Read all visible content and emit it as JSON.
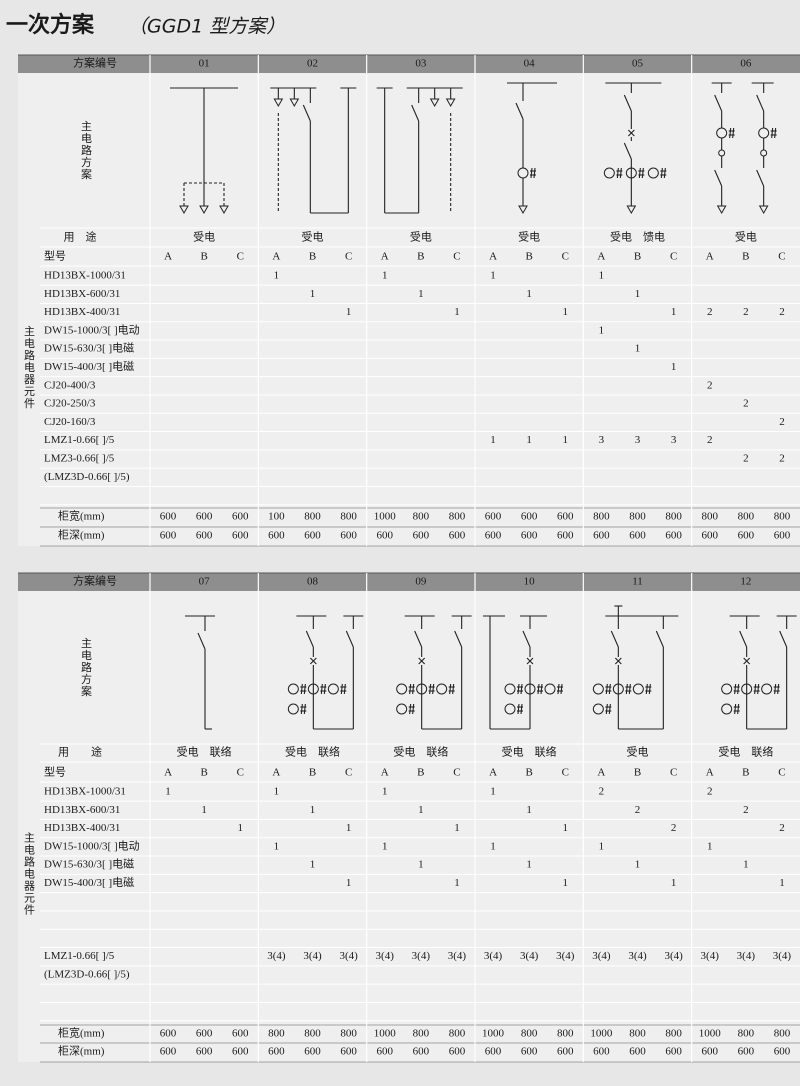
{
  "title": "一次方案",
  "subtitle": "（GGD1 型方案）",
  "tables": [
    {
      "header_label": "方案编号",
      "diagram_label": "主电路方案",
      "usage_label": "用　途",
      "component_label": "主电路电器元件",
      "type_label": "型号",
      "sub_columns": [
        "A",
        "B",
        "C"
      ],
      "schemes": [
        {
          "code": "01",
          "usage": "受电"
        },
        {
          "code": "02",
          "usage": "受电"
        },
        {
          "code": "03",
          "usage": "受电"
        },
        {
          "code": "04",
          "usage": "受电"
        },
        {
          "code": "05",
          "usage": "受电　馈电"
        },
        {
          "code": "06",
          "usage": "受电"
        }
      ],
      "rows": [
        {
          "name": "HD13BX-1000/31",
          "cells": [
            null,
            null,
            null,
            1,
            null,
            null,
            1,
            null,
            null,
            1,
            null,
            null,
            1,
            null,
            null,
            null,
            null,
            null
          ]
        },
        {
          "name": "HD13BX-600/31",
          "cells": [
            null,
            null,
            null,
            null,
            1,
            null,
            null,
            1,
            null,
            null,
            1,
            null,
            null,
            1,
            null,
            null,
            null,
            null
          ]
        },
        {
          "name": "HD13BX-400/31",
          "cells": [
            null,
            null,
            null,
            null,
            null,
            1,
            null,
            null,
            1,
            null,
            null,
            1,
            null,
            null,
            1,
            2,
            2,
            2
          ]
        },
        {
          "name": "DW15-1000/3[ ]电动",
          "cells": [
            null,
            null,
            null,
            null,
            null,
            null,
            null,
            null,
            null,
            null,
            null,
            null,
            1,
            null,
            null,
            null,
            null,
            null
          ]
        },
        {
          "name": "DW15-630/3[ ]电磁",
          "cells": [
            null,
            null,
            null,
            null,
            null,
            null,
            null,
            null,
            null,
            null,
            null,
            null,
            null,
            1,
            null,
            null,
            null,
            null
          ]
        },
        {
          "name": "DW15-400/3[ ]电磁",
          "cells": [
            null,
            null,
            null,
            null,
            null,
            null,
            null,
            null,
            null,
            null,
            null,
            null,
            null,
            null,
            1,
            null,
            null,
            null
          ]
        },
        {
          "name": "CJ20-400/3",
          "cells": [
            null,
            null,
            null,
            null,
            null,
            null,
            null,
            null,
            null,
            null,
            null,
            null,
            null,
            null,
            null,
            2,
            null,
            null
          ]
        },
        {
          "name": "CJ20-250/3",
          "cells": [
            null,
            null,
            null,
            null,
            null,
            null,
            null,
            null,
            null,
            null,
            null,
            null,
            null,
            null,
            null,
            null,
            2,
            null
          ]
        },
        {
          "name": "CJ20-160/3",
          "cells": [
            null,
            null,
            null,
            null,
            null,
            null,
            null,
            null,
            null,
            null,
            null,
            null,
            null,
            null,
            null,
            null,
            null,
            2
          ]
        },
        {
          "name": "LMZ1-0.66[ ]/5",
          "cells": [
            null,
            null,
            null,
            null,
            null,
            null,
            null,
            null,
            null,
            1,
            1,
            1,
            3,
            3,
            3,
            2,
            null,
            null
          ]
        },
        {
          "name": "LMZ3-0.66[ ]/5",
          "cells": [
            null,
            null,
            null,
            null,
            null,
            null,
            null,
            null,
            null,
            null,
            null,
            null,
            null,
            null,
            null,
            null,
            2,
            2
          ]
        },
        {
          "name": "(LMZ3D-0.66[ ]/5)",
          "cells": [
            null,
            null,
            null,
            null,
            null,
            null,
            null,
            null,
            null,
            null,
            null,
            null,
            null,
            null,
            null,
            null,
            null,
            null
          ]
        }
      ],
      "width_label": "柜宽(mm)",
      "widths": [
        600,
        600,
        600,
        100,
        800,
        800,
        1000,
        800,
        800,
        600,
        600,
        600,
        800,
        800,
        800,
        800,
        800,
        800
      ],
      "depth_label": "柜深(mm)",
      "depths": [
        600,
        600,
        600,
        600,
        600,
        600,
        600,
        600,
        600,
        600,
        600,
        600,
        600,
        600,
        600,
        600,
        600,
        600
      ]
    },
    {
      "header_label": "方案编号",
      "diagram_label": "主电路方案",
      "usage_label": "用　　途",
      "component_label": "主电路电器元件",
      "type_label": "型号",
      "sub_columns": [
        "A",
        "B",
        "C"
      ],
      "schemes": [
        {
          "code": "07",
          "usage": "受电　联络"
        },
        {
          "code": "08",
          "usage": "受电　联络"
        },
        {
          "code": "09",
          "usage": "受电　联络"
        },
        {
          "code": "10",
          "usage": "受电　联络"
        },
        {
          "code": "11",
          "usage": "受电"
        },
        {
          "code": "12",
          "usage": "受电　联络"
        }
      ],
      "rows": [
        {
          "name": "HD13BX-1000/31",
          "cells": [
            1,
            null,
            null,
            1,
            null,
            null,
            1,
            null,
            null,
            1,
            null,
            null,
            2,
            null,
            null,
            2,
            null,
            null
          ]
        },
        {
          "name": "HD13BX-600/31",
          "cells": [
            null,
            1,
            null,
            null,
            1,
            null,
            null,
            1,
            null,
            null,
            1,
            null,
            null,
            2,
            null,
            null,
            2,
            null
          ]
        },
        {
          "name": "HD13BX-400/31",
          "cells": [
            null,
            null,
            1,
            null,
            null,
            1,
            null,
            null,
            1,
            null,
            null,
            1,
            null,
            null,
            2,
            null,
            null,
            2
          ]
        },
        {
          "name": "DW15-1000/3[ ]电动",
          "cells": [
            null,
            null,
            null,
            1,
            null,
            null,
            1,
            null,
            null,
            1,
            null,
            null,
            1,
            null,
            null,
            1,
            null,
            null
          ]
        },
        {
          "name": "DW15-630/3[ ]电磁",
          "cells": [
            null,
            null,
            null,
            null,
            1,
            null,
            null,
            1,
            null,
            null,
            1,
            null,
            null,
            1,
            null,
            null,
            1,
            null
          ]
        },
        {
          "name": "DW15-400/3[ ]电磁",
          "cells": [
            null,
            null,
            null,
            null,
            null,
            1,
            null,
            null,
            1,
            null,
            null,
            1,
            null,
            null,
            1,
            null,
            null,
            1
          ]
        },
        {
          "name": "LMZ1-0.66[ ]/5",
          "cells": [
            null,
            null,
            null,
            "3(4)",
            "3(4)",
            "3(4)",
            "3(4)",
            "3(4)",
            "3(4)",
            "3(4)",
            "3(4)",
            "3(4)",
            "3(4)",
            "3(4)",
            "3(4)",
            "3(4)",
            "3(4)",
            "3(4)"
          ]
        },
        {
          "name": "(LMZ3D-0.66[ ]/5)",
          "cells": [
            null,
            null,
            null,
            null,
            null,
            null,
            null,
            null,
            null,
            null,
            null,
            null,
            null,
            null,
            null,
            null,
            null,
            null
          ]
        }
      ],
      "width_label": "柜宽(mm)",
      "widths": [
        600,
        600,
        600,
        800,
        800,
        800,
        1000,
        800,
        800,
        1000,
        800,
        800,
        1000,
        800,
        800,
        1000,
        800,
        800
      ],
      "depth_label": "柜深(mm)",
      "depths": [
        600,
        600,
        600,
        600,
        600,
        600,
        600,
        600,
        600,
        600,
        600,
        600,
        600,
        600,
        600,
        600,
        600,
        600
      ]
    }
  ]
}
